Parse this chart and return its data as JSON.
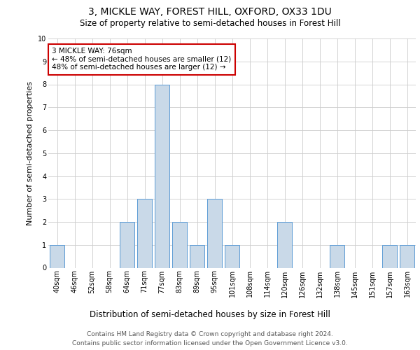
{
  "title1": "3, MICKLE WAY, FOREST HILL, OXFORD, OX33 1DU",
  "title2": "Size of property relative to semi-detached houses in Forest Hill",
  "xlabel": "Distribution of semi-detached houses by size in Forest Hill",
  "ylabel": "Number of semi-detached properties",
  "categories": [
    "40sqm",
    "46sqm",
    "52sqm",
    "58sqm",
    "64sqm",
    "71sqm",
    "77sqm",
    "83sqm",
    "89sqm",
    "95sqm",
    "101sqm",
    "108sqm",
    "114sqm",
    "120sqm",
    "126sqm",
    "132sqm",
    "138sqm",
    "145sqm",
    "151sqm",
    "157sqm",
    "163sqm"
  ],
  "values": [
    1,
    0,
    0,
    0,
    2,
    3,
    8,
    2,
    1,
    3,
    1,
    0,
    0,
    2,
    0,
    0,
    1,
    0,
    0,
    1,
    1
  ],
  "highlight_index": 6,
  "bar_color": "#c9d9e8",
  "bar_edge_color": "#5b9bd5",
  "annotation_text": "3 MICKLE WAY: 76sqm\n← 48% of semi-detached houses are smaller (12)\n48% of semi-detached houses are larger (12) →",
  "annotation_box_color": "#ffffff",
  "annotation_box_edge_color": "#cc0000",
  "ylim": [
    0,
    10
  ],
  "yticks": [
    0,
    1,
    2,
    3,
    4,
    5,
    6,
    7,
    8,
    9,
    10
  ],
  "grid_color": "#cccccc",
  "background_color": "#ffffff",
  "footer_line1": "Contains HM Land Registry data © Crown copyright and database right 2024.",
  "footer_line2": "Contains public sector information licensed under the Open Government Licence v3.0.",
  "title1_fontsize": 10,
  "title2_fontsize": 8.5,
  "ylabel_fontsize": 8,
  "xlabel_fontsize": 8.5,
  "tick_fontsize": 7,
  "annotation_fontsize": 7.5,
  "footer_fontsize": 6.5
}
